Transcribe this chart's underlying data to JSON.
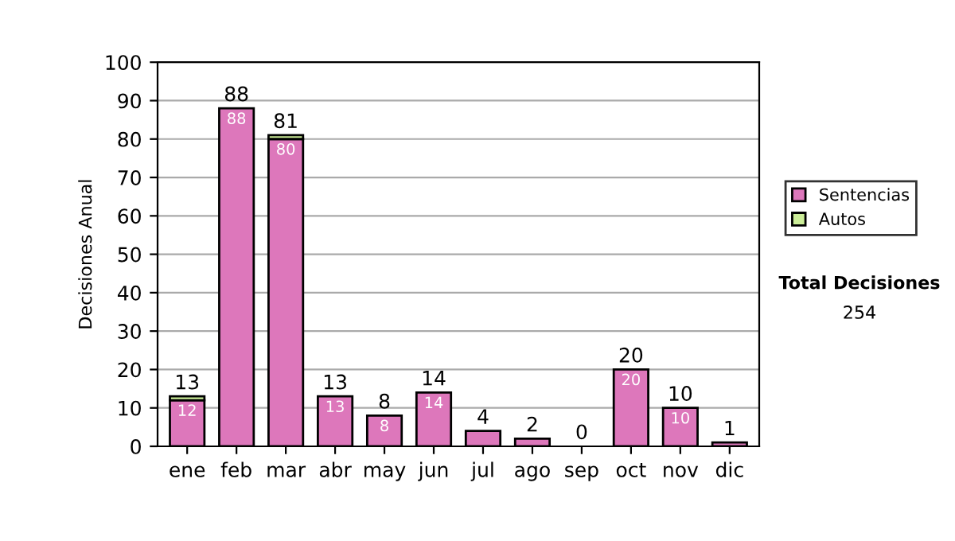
{
  "chart_data": {
    "type": "bar",
    "stacked": true,
    "ylabel": "Decisiones Anual",
    "categories": [
      "ene",
      "feb",
      "mar",
      "abr",
      "may",
      "jun",
      "jul",
      "ago",
      "sep",
      "oct",
      "nov",
      "dic"
    ],
    "series": [
      {
        "name": "Sentencias",
        "color": "#dd77bb",
        "values": [
          12,
          88,
          80,
          13,
          8,
          14,
          4,
          2,
          0,
          20,
          10,
          1
        ],
        "value_labels": [
          "12",
          "88",
          "80",
          "13",
          "8",
          "14",
          null,
          null,
          null,
          "20",
          "10",
          null
        ]
      },
      {
        "name": "Autos",
        "color": "#ccee99",
        "values": [
          1,
          0,
          1,
          0,
          0,
          0,
          0,
          0,
          0,
          0,
          0,
          0
        ]
      }
    ],
    "totals": [
      "13",
      "88",
      "81",
      "13",
      "8",
      "14",
      "4",
      "2",
      "0",
      "20",
      "10",
      "1"
    ],
    "ylim": [
      0,
      100
    ],
    "yticks": [
      0,
      10,
      20,
      30,
      40,
      50,
      60,
      70,
      80,
      90,
      100
    ],
    "grid": "y",
    "legend": "right",
    "annotations": [
      "Total Decisiones",
      "254"
    ]
  }
}
